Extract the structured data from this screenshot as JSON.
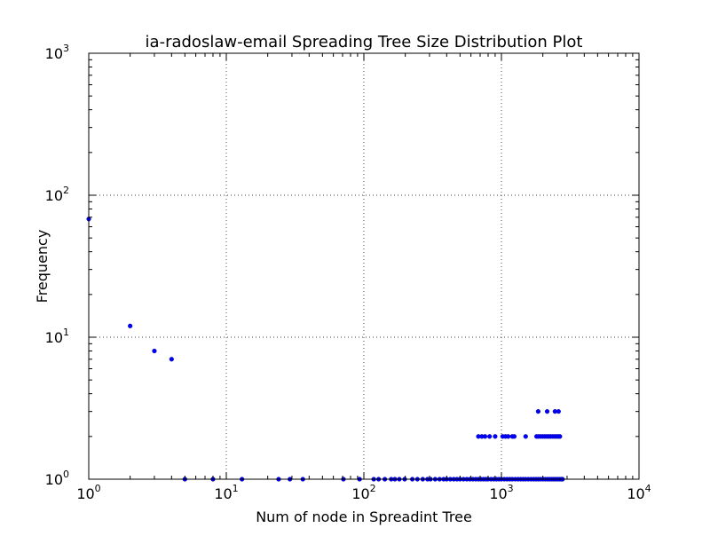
{
  "chart_data": {
    "type": "scatter",
    "title": "ia-radoslaw-email Spreading Tree Size Distribution Plot",
    "xlabel": "Num of node in Spreadint Tree",
    "ylabel": "Frequency",
    "x_scale": "log",
    "y_scale": "log",
    "xlim": [
      1,
      10000
    ],
    "ylim": [
      1,
      1000
    ],
    "grid": true,
    "x_ticks": [
      {
        "base": "10",
        "exp": "0",
        "value": 1
      },
      {
        "base": "10",
        "exp": "1",
        "value": 10
      },
      {
        "base": "10",
        "exp": "2",
        "value": 100
      },
      {
        "base": "10",
        "exp": "3",
        "value": 1000
      },
      {
        "base": "10",
        "exp": "4",
        "value": 10000
      }
    ],
    "y_ticks": [
      {
        "base": "10",
        "exp": "0",
        "value": 1
      },
      {
        "base": "10",
        "exp": "1",
        "value": 10
      },
      {
        "base": "10",
        "exp": "2",
        "value": 100
      },
      {
        "base": "10",
        "exp": "3",
        "value": 1000
      }
    ],
    "marker_color": "#0000ff",
    "series": [
      {
        "points": [
          {
            "x": 1,
            "y": 68
          },
          {
            "x": 2,
            "y": 12
          },
          {
            "x": 3,
            "y": 8
          },
          {
            "x": 4,
            "y": 7
          },
          {
            "x": 5,
            "y": 1
          },
          {
            "x": 8,
            "y": 1
          },
          {
            "x": 13,
            "y": 1
          },
          {
            "x": 24,
            "y": 1
          },
          {
            "x": 29,
            "y": 1
          },
          {
            "x": 36,
            "y": 1
          },
          {
            "x": 71,
            "y": 1
          },
          {
            "x": 93,
            "y": 1
          },
          {
            "x": 118,
            "y": 1
          },
          {
            "x": 128,
            "y": 1
          },
          {
            "x": 142,
            "y": 1
          },
          {
            "x": 158,
            "y": 1
          },
          {
            "x": 168,
            "y": 1
          },
          {
            "x": 181,
            "y": 1
          },
          {
            "x": 198,
            "y": 1
          },
          {
            "x": 225,
            "y": 1
          },
          {
            "x": 245,
            "y": 1
          },
          {
            "x": 268,
            "y": 1
          },
          {
            "x": 290,
            "y": 1
          },
          {
            "x": 305,
            "y": 1
          },
          {
            "x": 330,
            "y": 1
          },
          {
            "x": 355,
            "y": 1
          },
          {
            "x": 380,
            "y": 1
          },
          {
            "x": 400,
            "y": 1
          },
          {
            "x": 425,
            "y": 1
          },
          {
            "x": 450,
            "y": 1
          },
          {
            "x": 475,
            "y": 1
          },
          {
            "x": 500,
            "y": 1
          },
          {
            "x": 530,
            "y": 1
          },
          {
            "x": 560,
            "y": 1
          },
          {
            "x": 590,
            "y": 1
          },
          {
            "x": 620,
            "y": 1
          },
          {
            "x": 650,
            "y": 1
          },
          {
            "x": 680,
            "y": 1
          },
          {
            "x": 710,
            "y": 1
          },
          {
            "x": 740,
            "y": 1
          },
          {
            "x": 770,
            "y": 1
          },
          {
            "x": 800,
            "y": 1
          },
          {
            "x": 840,
            "y": 1
          },
          {
            "x": 880,
            "y": 1
          },
          {
            "x": 920,
            "y": 1
          },
          {
            "x": 960,
            "y": 1
          },
          {
            "x": 1000,
            "y": 1
          },
          {
            "x": 1050,
            "y": 1
          },
          {
            "x": 1100,
            "y": 1
          },
          {
            "x": 1150,
            "y": 1
          },
          {
            "x": 1200,
            "y": 1
          },
          {
            "x": 1260,
            "y": 1
          },
          {
            "x": 1320,
            "y": 1
          },
          {
            "x": 1380,
            "y": 1
          },
          {
            "x": 1440,
            "y": 1
          },
          {
            "x": 1500,
            "y": 1
          },
          {
            "x": 1570,
            "y": 1
          },
          {
            "x": 1640,
            "y": 1
          },
          {
            "x": 1710,
            "y": 1
          },
          {
            "x": 1780,
            "y": 1
          },
          {
            "x": 1850,
            "y": 1
          },
          {
            "x": 1920,
            "y": 1
          },
          {
            "x": 2000,
            "y": 1
          },
          {
            "x": 2080,
            "y": 1
          },
          {
            "x": 2160,
            "y": 1
          },
          {
            "x": 2240,
            "y": 1
          },
          {
            "x": 2320,
            "y": 1
          },
          {
            "x": 2400,
            "y": 1
          },
          {
            "x": 2480,
            "y": 1
          },
          {
            "x": 2560,
            "y": 1
          },
          {
            "x": 2640,
            "y": 1
          },
          {
            "x": 2720,
            "y": 1
          },
          {
            "x": 2780,
            "y": 1
          },
          {
            "x": 680,
            "y": 2
          },
          {
            "x": 720,
            "y": 2
          },
          {
            "x": 760,
            "y": 2
          },
          {
            "x": 820,
            "y": 2
          },
          {
            "x": 900,
            "y": 2
          },
          {
            "x": 1020,
            "y": 2
          },
          {
            "x": 1070,
            "y": 2
          },
          {
            "x": 1120,
            "y": 2
          },
          {
            "x": 1200,
            "y": 2
          },
          {
            "x": 1240,
            "y": 2
          },
          {
            "x": 1500,
            "y": 2
          },
          {
            "x": 1800,
            "y": 2
          },
          {
            "x": 1860,
            "y": 2
          },
          {
            "x": 1930,
            "y": 2
          },
          {
            "x": 2000,
            "y": 2
          },
          {
            "x": 2070,
            "y": 2
          },
          {
            "x": 2140,
            "y": 2
          },
          {
            "x": 2210,
            "y": 2
          },
          {
            "x": 2280,
            "y": 2
          },
          {
            "x": 2360,
            "y": 2
          },
          {
            "x": 2440,
            "y": 2
          },
          {
            "x": 2520,
            "y": 2
          },
          {
            "x": 2600,
            "y": 2
          },
          {
            "x": 2660,
            "y": 2
          },
          {
            "x": 1850,
            "y": 3
          },
          {
            "x": 2150,
            "y": 3
          },
          {
            "x": 2450,
            "y": 3
          },
          {
            "x": 2600,
            "y": 3
          }
        ]
      }
    ]
  }
}
